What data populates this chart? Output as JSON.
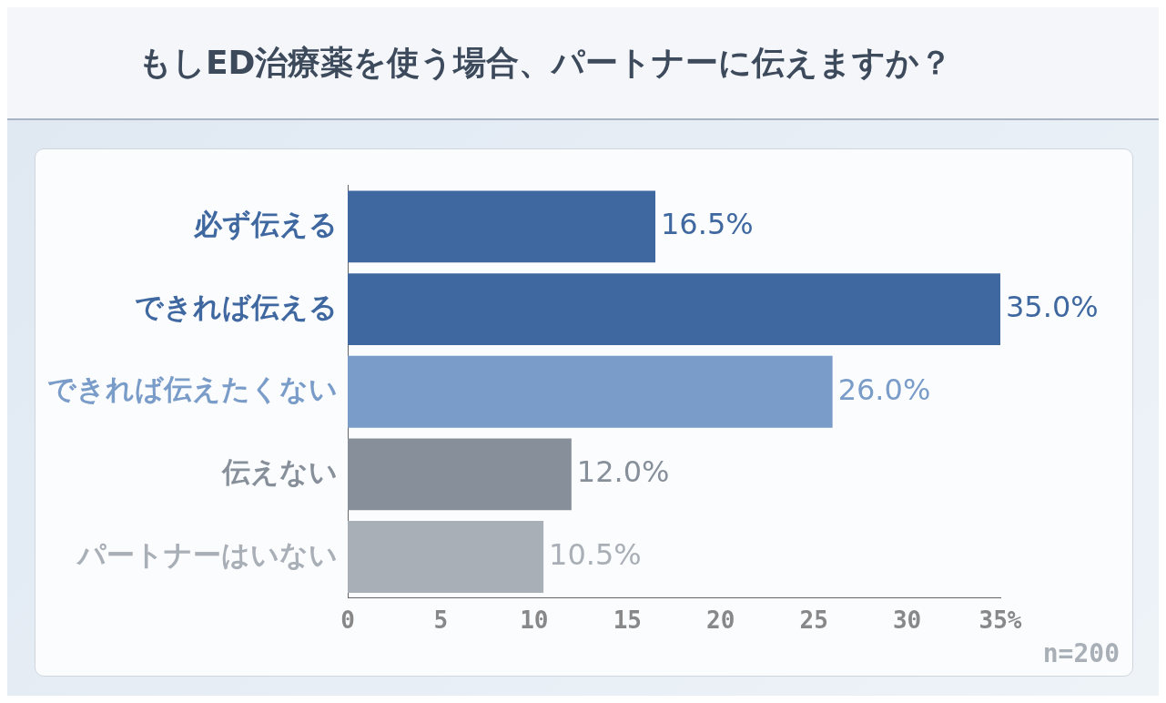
{
  "chart_data": {
    "type": "bar",
    "orientation": "horizontal",
    "title": "もしED治療薬を使う場合、パートナーに伝えますか？",
    "categories": [
      "必ず伝える",
      "できれば伝える",
      "できれば伝えたくない",
      "伝えない",
      "パートナーはいない"
    ],
    "values": [
      16.5,
      35.0,
      26.0,
      12.0,
      10.5
    ],
    "colors": [
      "#3f68a0",
      "#3f68a0",
      "#7a9cc8",
      "#87909a",
      "#a9afb6"
    ],
    "value_labels": [
      "16.5%",
      "35.0%",
      "26.0%",
      "12.0%",
      "10.5%"
    ],
    "xlim": [
      0,
      35
    ],
    "xticks": [
      0,
      5,
      10,
      15,
      20,
      25,
      30,
      {
        "value": 35,
        "label": "35%"
      }
    ],
    "grid": false,
    "annotations": [
      "n=200"
    ]
  }
}
